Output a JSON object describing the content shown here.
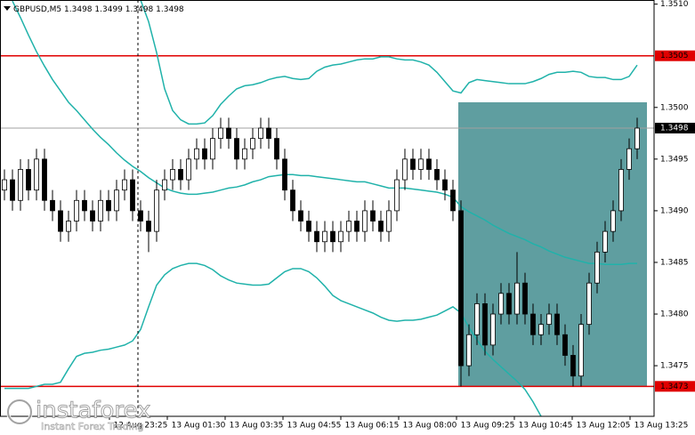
{
  "chart_data": {
    "type": "candlestick",
    "symbol": "GBPUSD,M5",
    "quote": [
      1.3498,
      1.3499,
      1.3498,
      1.3498
    ],
    "open": [
      1.3492,
      1.3493,
      1.3491,
      1.3494,
      1.3492,
      1.3495,
      1.3491,
      1.349,
      1.3488,
      1.3489,
      1.3491,
      1.349,
      1.3489,
      1.3491,
      1.349,
      1.3492,
      1.3493,
      1.349,
      1.3489,
      1.3488,
      1.3492,
      1.3493,
      1.3494,
      1.3493,
      1.3495,
      1.3496,
      1.3495,
      1.3497,
      1.3498,
      1.3497,
      1.3495,
      1.3496,
      1.3497,
      1.3498,
      1.3497,
      1.3495,
      1.3492,
      1.349,
      1.3489,
      1.3488,
      1.3487,
      1.3488,
      1.3487,
      1.3488,
      1.3489,
      1.3488,
      1.349,
      1.3489,
      1.3488,
      1.349,
      1.3493,
      1.3495,
      1.3494,
      1.3495,
      1.3494,
      1.3493,
      1.3492,
      1.349,
      1.3475,
      1.3478,
      1.3481,
      1.3477,
      1.348,
      1.3482,
      1.348,
      1.3483,
      1.348,
      1.3478,
      1.3479,
      1.348,
      1.3478,
      1.3476,
      1.3474,
      1.3479,
      1.3483,
      1.3486,
      1.3488,
      1.349,
      1.3494,
      1.3496
    ],
    "high": [
      1.3494,
      1.3494,
      1.3495,
      1.3495,
      1.3496,
      1.3496,
      1.3492,
      1.3491,
      1.349,
      1.3492,
      1.3492,
      1.3491,
      1.3492,
      1.3492,
      1.3493,
      1.3494,
      1.3494,
      1.3491,
      1.349,
      1.3493,
      1.3494,
      1.3495,
      1.3495,
      1.3496,
      1.3497,
      1.3497,
      1.3498,
      1.3499,
      1.3499,
      1.3498,
      1.3497,
      1.3498,
      1.3499,
      1.3499,
      1.3498,
      1.3496,
      1.3493,
      1.3491,
      1.349,
      1.3489,
      1.3489,
      1.3489,
      1.3489,
      1.349,
      1.349,
      1.3491,
      1.3491,
      1.349,
      1.3491,
      1.3494,
      1.3496,
      1.3496,
      1.3496,
      1.3496,
      1.3495,
      1.3494,
      1.3493,
      1.3491,
      1.3479,
      1.3482,
      1.3482,
      1.3481,
      1.3483,
      1.3483,
      1.3486,
      1.3484,
      1.3481,
      1.348,
      1.3481,
      1.3481,
      1.3479,
      1.3477,
      1.348,
      1.3484,
      1.3487,
      1.3489,
      1.3491,
      1.3495,
      1.3497,
      1.3499
    ],
    "low": [
      1.3491,
      1.349,
      1.349,
      1.3491,
      1.3491,
      1.349,
      1.3489,
      1.3487,
      1.3487,
      1.3488,
      1.3489,
      1.3488,
      1.3488,
      1.3489,
      1.3489,
      1.3491,
      1.3489,
      1.3488,
      1.3486,
      1.3487,
      1.3491,
      1.3492,
      1.3492,
      1.3492,
      1.3494,
      1.3494,
      1.3494,
      1.3496,
      1.3496,
      1.3494,
      1.3494,
      1.3495,
      1.3496,
      1.3496,
      1.3494,
      1.3491,
      1.3489,
      1.3488,
      1.3487,
      1.3486,
      1.3486,
      1.3486,
      1.3486,
      1.3487,
      1.3487,
      1.3487,
      1.3488,
      1.3487,
      1.3487,
      1.3489,
      1.3492,
      1.3493,
      1.3493,
      1.3493,
      1.3492,
      1.3491,
      1.3489,
      1.3473,
      1.3474,
      1.3477,
      1.3476,
      1.3476,
      1.3479,
      1.3479,
      1.3479,
      1.3479,
      1.3477,
      1.3477,
      1.3478,
      1.3477,
      1.3475,
      1.3473,
      1.3473,
      1.3478,
      1.3482,
      1.3485,
      1.3487,
      1.3489,
      1.3493,
      1.3495
    ],
    "close": [
      1.3493,
      1.3491,
      1.3494,
      1.3492,
      1.3495,
      1.3491,
      1.349,
      1.3488,
      1.3489,
      1.3491,
      1.349,
      1.3489,
      1.3491,
      1.349,
      1.3492,
      1.3493,
      1.349,
      1.3489,
      1.3488,
      1.3492,
      1.3493,
      1.3494,
      1.3493,
      1.3495,
      1.3496,
      1.3495,
      1.3497,
      1.3498,
      1.3497,
      1.3495,
      1.3496,
      1.3497,
      1.3498,
      1.3497,
      1.3495,
      1.3492,
      1.349,
      1.3489,
      1.3488,
      1.3487,
      1.3488,
      1.3487,
      1.3488,
      1.3489,
      1.3488,
      1.349,
      1.3489,
      1.3488,
      1.349,
      1.3493,
      1.3495,
      1.3494,
      1.3495,
      1.3494,
      1.3493,
      1.3492,
      1.349,
      1.3475,
      1.3478,
      1.3481,
      1.3477,
      1.348,
      1.3482,
      1.348,
      1.3483,
      1.348,
      1.3478,
      1.3479,
      1.348,
      1.3478,
      1.3476,
      1.3474,
      1.3479,
      1.3483,
      1.3486,
      1.3488,
      1.349,
      1.3494,
      1.3496,
      1.3498
    ],
    "bands": [
      {
        "color": "#20b2aa",
        "values": [
          null,
          null,
          null,
          null,
          null,
          null,
          null,
          null,
          null,
          null,
          null,
          null,
          null,
          null,
          null,
          null,
          null,
          1.35104,
          1.35083,
          1.35053,
          1.35018,
          1.34997,
          1.34988,
          1.34984,
          1.34984,
          1.34985,
          1.34992,
          1.35003,
          1.35011,
          1.35018,
          1.35021,
          1.35022,
          1.35024,
          1.35027,
          1.35029,
          1.3503,
          1.35028,
          1.35027,
          1.35028,
          1.35035,
          1.35039,
          1.35041,
          1.35042,
          1.35044,
          1.35046,
          1.35047,
          1.35047,
          1.35049,
          1.35049,
          1.35047,
          1.35046,
          1.35046,
          1.35044,
          1.35041,
          1.35034,
          1.35025,
          1.35016,
          1.35014,
          1.35024,
          1.35027,
          1.35026,
          1.35025,
          1.35024,
          1.35023,
          1.35023,
          1.35023,
          1.35025,
          1.35028,
          1.35032,
          1.35034,
          1.35034,
          1.35035,
          1.35034,
          1.3503,
          1.35029,
          1.35029,
          1.35027,
          1.35027,
          1.3503,
          1.35041
        ]
      },
      {
        "color": "#20b2aa",
        "values": [
          null,
          1.35103,
          1.35087,
          1.3507,
          1.35054,
          1.3504,
          1.35027,
          1.35016,
          1.35005,
          1.34997,
          1.34988,
          1.34979,
          1.34971,
          1.34964,
          1.34956,
          1.34949,
          1.34943,
          1.34938,
          1.34932,
          1.34927,
          1.34922,
          1.34919,
          1.34917,
          1.34916,
          1.34916,
          1.34917,
          1.34918,
          1.3492,
          1.34922,
          1.34923,
          1.34925,
          1.34928,
          1.3493,
          1.34933,
          1.34934,
          1.34935,
          1.34935,
          1.34934,
          1.34934,
          1.34933,
          1.34932,
          1.34931,
          1.3493,
          1.34929,
          1.34928,
          1.34928,
          1.34926,
          1.34924,
          1.34922,
          1.34922,
          1.34922,
          1.34921,
          1.3492,
          1.34919,
          1.34918,
          1.34916,
          1.34913,
          1.34904,
          1.34899,
          1.34895,
          1.34891,
          1.34886,
          1.34882,
          1.34878,
          1.34875,
          1.34872,
          1.34868,
          1.34865,
          1.34861,
          1.34858,
          1.34855,
          1.34853,
          1.34851,
          1.34849,
          1.34849,
          1.34848,
          1.34848,
          1.34848,
          1.34849,
          1.34849
        ]
      },
      {
        "color": "#20b2aa",
        "values": [
          1.34728,
          1.34728,
          1.34728,
          1.34728,
          1.3473,
          1.34732,
          1.34732,
          1.34734,
          1.34747,
          1.34759,
          1.34762,
          1.34763,
          1.34765,
          1.34766,
          1.34768,
          1.3477,
          1.34774,
          1.34785,
          1.34807,
          1.34828,
          1.34838,
          1.34844,
          1.34847,
          1.34849,
          1.34849,
          1.34847,
          1.34843,
          1.34837,
          1.34833,
          1.3483,
          1.34829,
          1.34828,
          1.34828,
          1.34829,
          1.34835,
          1.34841,
          1.34844,
          1.34844,
          1.34841,
          1.34835,
          1.34827,
          1.34818,
          1.34813,
          1.3481,
          1.34807,
          1.34804,
          1.34801,
          1.34797,
          1.34794,
          1.34793,
          1.34794,
          1.34794,
          1.34795,
          1.34797,
          1.34799,
          1.34803,
          1.34807,
          1.34801,
          1.34787,
          1.34775,
          1.34764,
          1.34756,
          1.34749,
          1.34742,
          1.34735,
          1.34727,
          1.34715,
          1.34701,
          null,
          null,
          null,
          null,
          null,
          null,
          null,
          null,
          null,
          null,
          null,
          null
        ]
      }
    ],
    "levels": [
      {
        "value": 1.3505,
        "color": "#e00000"
      },
      {
        "value": 1.3473,
        "color": "#e00000"
      },
      {
        "value": 1.3498,
        "color": "#000000"
      }
    ],
    "rectangle": {
      "top": 1.35005,
      "bottom": 1.3473,
      "color": "#5f9ea0"
    },
    "ylim": [
      1.34701,
      1.35104
    ],
    "yticks": [
      {
        "value": 1.351,
        "label": "1.3510"
      },
      {
        "value": 1.35,
        "label": "1.3500"
      },
      1.3495,
      {
        "value": 1.349,
        "label": "1.3490"
      },
      1.3485,
      {
        "value": 1.348,
        "label": "1.3480"
      },
      1.3475
    ],
    "xticks": [
      "12 Aug 23:25",
      "13 Aug 01:30",
      "13 Aug 03:35",
      "13 Aug 04:55",
      "13 Aug 06:15",
      "13 Aug 08:00",
      "13 Aug 09:25",
      "13 Aug 10:45",
      "13 Aug 12:05",
      "13 Aug 13:25"
    ],
    "watermark": {
      "brand": "instaforex",
      "tagline": "Instant Forex Trading"
    }
  }
}
